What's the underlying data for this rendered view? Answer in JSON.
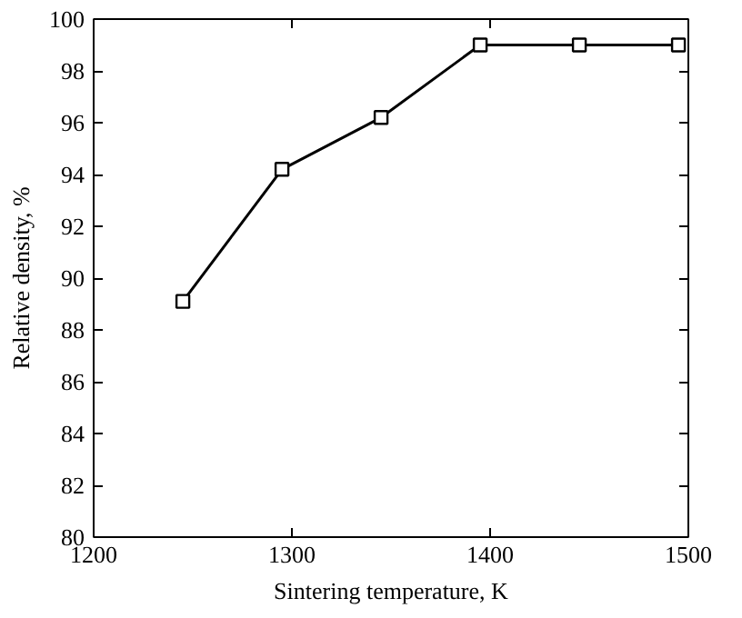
{
  "chart_data": {
    "type": "line",
    "xlabel": "Sintering temperature, K",
    "ylabel": "Relative density, %",
    "x": [
      1245,
      1295,
      1345,
      1395,
      1445,
      1495
    ],
    "series": [
      {
        "color": "#000000",
        "values": [
          89.1,
          94.2,
          96.2,
          99.0,
          99.0,
          99.0
        ]
      }
    ],
    "xlim": [
      1200,
      1500
    ],
    "xticks": [
      1200,
      1300,
      1400,
      1500
    ],
    "ylim": [
      80,
      100
    ],
    "yticks": [
      80,
      82,
      84,
      86,
      88,
      90,
      92,
      94,
      96,
      98,
      100
    ],
    "marker": "square",
    "line_style": "solid"
  }
}
